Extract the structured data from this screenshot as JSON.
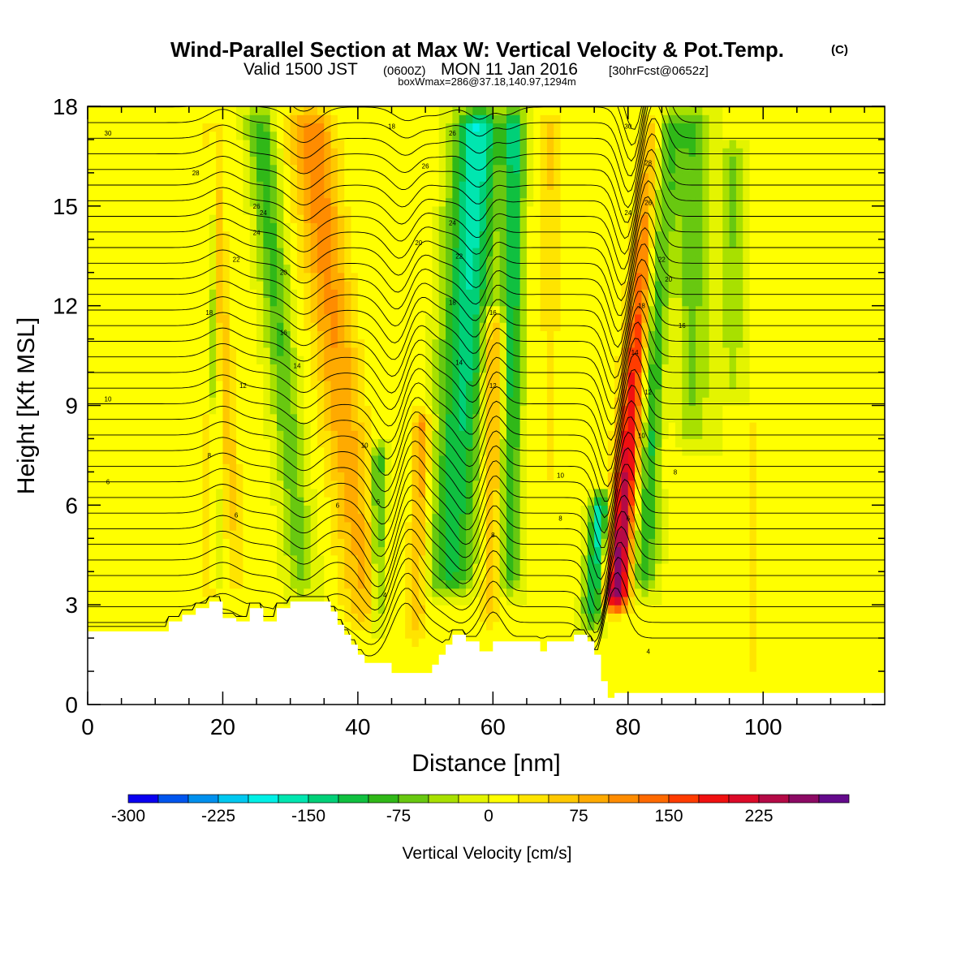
{
  "chart_data": {
    "type": "heatmap",
    "title": "Wind-Parallel Section at Max W: Vertical Velocity & Pot.Temp.",
    "title_mark": "(C)",
    "subtitle_prefix": "Valid 1500 JST",
    "subtitle_zulu": "(0600Z)",
    "subtitle_date": "MON 11 Jan 2016",
    "subtitle_fcst": "[30hrFcst@0652z]",
    "subtitle2": "boxWmax=286@37.18,140.97,1294m",
    "xlabel": "Distance [nm]",
    "ylabel": "Height [Kft MSL]",
    "xlim": [
      0,
      118
    ],
    "ylim": [
      0,
      18
    ],
    "x_ticks": [
      0,
      20,
      40,
      60,
      80,
      100
    ],
    "x_tick_labels": [
      "0",
      "20",
      "40",
      "60",
      "80",
      "100"
    ],
    "y_ticks": [
      0,
      3,
      6,
      9,
      12,
      15,
      18
    ],
    "y_tick_labels": [
      "0",
      "3",
      "6",
      "9",
      "12",
      "15",
      "18"
    ],
    "colorbar": {
      "label": "Vertical Velocity [cm/s]",
      "min": -300,
      "max": 275,
      "step": 25,
      "tick_values": [
        -300,
        -225,
        -150,
        -75,
        0,
        75,
        150,
        225
      ],
      "tick_labels": [
        "-300",
        "-225",
        "-150",
        "-75",
        "0",
        "75",
        "150",
        "225"
      ],
      "colors": [
        "#0a00f0",
        "#0055ee",
        "#0090ee",
        "#00c8f0",
        "#00f0e6",
        "#00e6b0",
        "#00d078",
        "#10c040",
        "#30b818",
        "#68c810",
        "#a8e000",
        "#e4f400",
        "#ffff00",
        "#ffe400",
        "#ffc800",
        "#ffaa00",
        "#ff8c00",
        "#ff6a00",
        "#ff3c00",
        "#f01010",
        "#dc0a28",
        "#b40a46",
        "#8c0a64",
        "#640a8c"
      ]
    },
    "terrain": [
      [
        0,
        2.2
      ],
      [
        12,
        2.2
      ],
      [
        12,
        2.5
      ],
      [
        14,
        2.5
      ],
      [
        14,
        2.7
      ],
      [
        16,
        2.7
      ],
      [
        16,
        2.9
      ],
      [
        18,
        2.9
      ],
      [
        18,
        3.1
      ],
      [
        20,
        3.1
      ],
      [
        20,
        2.6
      ],
      [
        22,
        2.6
      ],
      [
        22,
        2.5
      ],
      [
        24,
        2.5
      ],
      [
        24,
        2.9
      ],
      [
        26,
        2.9
      ],
      [
        26,
        2.5
      ],
      [
        28,
        2.5
      ],
      [
        28,
        2.9
      ],
      [
        30,
        2.9
      ],
      [
        30,
        3.1
      ],
      [
        36,
        3.1
      ],
      [
        36,
        2.8
      ],
      [
        37,
        2.8
      ],
      [
        37,
        2.4
      ],
      [
        38,
        2.4
      ],
      [
        38,
        2.1
      ],
      [
        39,
        2.1
      ],
      [
        39,
        1.8
      ],
      [
        40,
        1.8
      ],
      [
        40,
        1.5
      ],
      [
        41,
        1.5
      ],
      [
        41,
        1.25
      ],
      [
        45,
        1.25
      ],
      [
        45,
        0.95
      ],
      [
        51,
        0.95
      ],
      [
        51,
        1.2
      ],
      [
        52,
        1.2
      ],
      [
        52,
        1.5
      ],
      [
        53,
        1.5
      ],
      [
        53,
        1.8
      ],
      [
        54,
        1.8
      ],
      [
        54,
        2.1
      ],
      [
        56,
        2.1
      ],
      [
        56,
        1.9
      ],
      [
        58,
        1.9
      ],
      [
        58,
        1.6
      ],
      [
        60,
        1.6
      ],
      [
        60,
        1.9
      ],
      [
        67,
        1.9
      ],
      [
        67,
        1.6
      ],
      [
        68,
        1.6
      ],
      [
        68,
        1.9
      ],
      [
        72,
        1.9
      ],
      [
        72,
        2.1
      ],
      [
        74,
        2.1
      ],
      [
        74,
        1.9
      ],
      [
        75,
        1.9
      ],
      [
        75,
        1.5
      ],
      [
        76,
        1.5
      ],
      [
        76,
        0.7
      ],
      [
        77,
        0.7
      ],
      [
        77,
        0.2
      ],
      [
        78,
        0.2
      ],
      [
        78,
        0.35
      ],
      [
        118,
        0.35
      ]
    ],
    "w_features": [
      {
        "name": "lee-lobe",
        "kind": "low",
        "x0": 16,
        "x1": 20,
        "y0": 2.5,
        "y1": 9.0,
        "w": 25,
        "w_end": 40,
        "tilt": 0.0
      },
      {
        "name": "downdraft-a",
        "kind": "low",
        "x0": 19,
        "x1": 20,
        "y0": 3.0,
        "y1": 18.0,
        "w": -30,
        "w_end": -75,
        "tilt": -0.1
      },
      {
        "name": "updraft-a",
        "kind": "high",
        "x0": 21,
        "x1": 24,
        "y0": 3.0,
        "y1": 18.0,
        "w": 50,
        "w_end": 70,
        "tilt": -0.3
      },
      {
        "name": "downdraft-b",
        "kind": "low",
        "x0": 30,
        "x1": 34,
        "y0": 3.0,
        "y1": 18.0,
        "w": -55,
        "w_end": -95,
        "tilt": -0.45
      },
      {
        "name": "updraft-b",
        "kind": "high",
        "x0": 38,
        "x1": 45,
        "y0": 2.0,
        "y1": 18.0,
        "w": 70,
        "w_end": 125,
        "tilt": -0.55
      },
      {
        "name": "downdraft-c",
        "kind": "low",
        "x0": 42,
        "x1": 44,
        "y0": 2.0,
        "y1": 8.0,
        "w": -85,
        "w_end": -120,
        "tilt": 0.0
      },
      {
        "name": "updraft-c",
        "kind": "high",
        "x0": 47,
        "x1": 50,
        "y0": 1.5,
        "y1": 9.0,
        "w": 60,
        "w_end": 110,
        "tilt": 0.15
      },
      {
        "name": "downdraft-d",
        "kind": "low",
        "x0": 50,
        "x1": 57,
        "y0": 3.0,
        "y1": 18.0,
        "w": -100,
        "w_end": -180,
        "tilt": 0.3
      },
      {
        "name": "updraft-d",
        "kind": "high",
        "x0": 58,
        "x1": 61,
        "y0": 2.0,
        "y1": 12.0,
        "w": 55,
        "w_end": 110,
        "tilt": 0.05
      },
      {
        "name": "downdraft-e",
        "kind": "low",
        "x0": 61,
        "x1": 64,
        "y0": 3.0,
        "y1": 18.0,
        "w": -80,
        "w_end": -140,
        "tilt": 0.05
      },
      {
        "name": "updraft-e",
        "kind": "high",
        "x0": 67,
        "x1": 70,
        "y0": 6.0,
        "y1": 18.0,
        "w": 30,
        "w_end": 55,
        "tilt": 0.0
      },
      {
        "name": "downdraft-f",
        "kind": "low",
        "x0": 73,
        "x1": 76,
        "y0": 2.0,
        "y1": 6.5,
        "w": -120,
        "w_end": -170,
        "tilt": 0.35
      },
      {
        "name": "updraft-max",
        "kind": "high",
        "x0": 76,
        "x1": 80,
        "y0": 2.5,
        "y1": 18.0,
        "w": 286,
        "w_end": 90,
        "tilt": 0.4
      },
      {
        "name": "downdraft-g",
        "kind": "low",
        "x0": 80,
        "x1": 84,
        "y0": 3.0,
        "y1": 18.0,
        "w": -90,
        "w_end": -150,
        "tilt": 0.25
      },
      {
        "name": "updraft-f",
        "kind": "high",
        "x0": 84,
        "x1": 87,
        "y0": 6.0,
        "y1": 18.0,
        "w": 25,
        "w_end": 45,
        "tilt": 0.0
      },
      {
        "name": "downdraft-h",
        "kind": "low",
        "x0": 87,
        "x1": 92,
        "y0": 7.5,
        "y1": 18.0,
        "w": -45,
        "w_end": -80,
        "tilt": 0.0
      },
      {
        "name": "downdraft-i",
        "kind": "low",
        "x0": 94,
        "x1": 97,
        "y0": 9.0,
        "y1": 17.0,
        "w": -35,
        "w_end": -60,
        "tilt": 0.0
      },
      {
        "name": "updraft-g",
        "kind": "high",
        "x0": 97,
        "x1": 100,
        "y0": 0.4,
        "y1": 9.0,
        "w": 30,
        "w_end": 30,
        "tilt": 0.0
      },
      {
        "name": "updraft-h",
        "kind": "high",
        "x0": 104,
        "x1": 106,
        "y0": 0.4,
        "y1": 7.0,
        "w": 25,
        "w_end": 25,
        "tilt": 0.0
      }
    ],
    "theta": {
      "levels": [
        4,
        5,
        6,
        7,
        8,
        9,
        10,
        11,
        12,
        13,
        14,
        15,
        16,
        17,
        18,
        19,
        20,
        21,
        22,
        23,
        24,
        25,
        26,
        27,
        28,
        29,
        30,
        31,
        32,
        33,
        34,
        35,
        36,
        37,
        38,
        39,
        40
      ],
      "labeled_levels": [
        "4",
        "6",
        "8",
        "10",
        "12",
        "14",
        "16",
        "18",
        "20",
        "22",
        "24",
        "26",
        "28",
        "30"
      ],
      "label_positions": [
        [
          3,
          6.7
        ],
        [
          3,
          9.2
        ],
        [
          3,
          17.2
        ],
        [
          18,
          7.5
        ],
        [
          18,
          11.8
        ],
        [
          22,
          5.7
        ],
        [
          23,
          9.6
        ],
        [
          22,
          13.4
        ],
        [
          25,
          14.2
        ],
        [
          25,
          15.0
        ],
        [
          16,
          16.0
        ],
        [
          26,
          14.8
        ],
        [
          29,
          13.0
        ],
        [
          31,
          10.2
        ],
        [
          29,
          11.2
        ],
        [
          41,
          7.8
        ],
        [
          43,
          6.1
        ],
        [
          37,
          6.0
        ],
        [
          44,
          3.3
        ],
        [
          49,
          13.9
        ],
        [
          50,
          16.2
        ],
        [
          45,
          17.4
        ],
        [
          54,
          17.2
        ],
        [
          54,
          14.5
        ],
        [
          55,
          13.5
        ],
        [
          54,
          12.1
        ],
        [
          55,
          10.3
        ],
        [
          60,
          11.8
        ],
        [
          60,
          9.6
        ],
        [
          60,
          5.1
        ],
        [
          70,
          6.9
        ],
        [
          70,
          5.6
        ],
        [
          80,
          17.4
        ],
        [
          83,
          16.3
        ],
        [
          83,
          15.1
        ],
        [
          80,
          14.8
        ],
        [
          85,
          13.4
        ],
        [
          86,
          12.8
        ],
        [
          82,
          12.0
        ],
        [
          88,
          11.4
        ],
        [
          81,
          10.6
        ],
        [
          83,
          9.4
        ],
        [
          82,
          8.1
        ],
        [
          87,
          7.0
        ],
        [
          80,
          5.6
        ],
        [
          83,
          1.6
        ]
      ],
      "label_texts": [
        "6",
        "10",
        "30",
        "8",
        "18",
        "6",
        "12",
        "22",
        "24",
        "26",
        "28",
        "24",
        "20",
        "14",
        "16",
        "10",
        "6",
        "6",
        "4",
        "20",
        "26",
        "18",
        "26",
        "24",
        "22",
        "18",
        "14",
        "16",
        "12",
        "8",
        "10",
        "8",
        "30",
        "28",
        "26",
        "24",
        "22",
        "20",
        "18",
        "16",
        "14",
        "12",
        "10",
        "8",
        "6",
        "4"
      ]
    }
  }
}
